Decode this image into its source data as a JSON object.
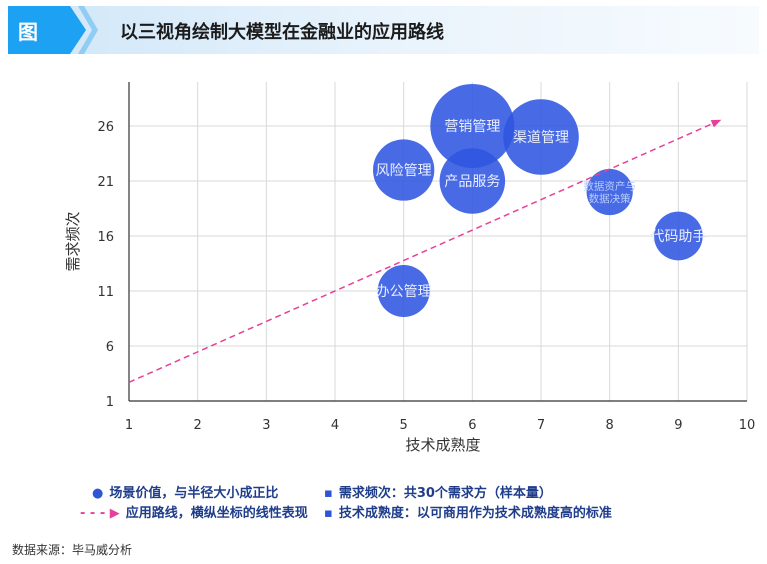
{
  "header": {
    "tag": "图",
    "title": "以三视角绘制大模型在金融业的应用路线"
  },
  "chart_data": {
    "type": "scatter",
    "subtype": "bubble",
    "xlabel": "技术成熟度",
    "ylabel": "需求频次",
    "xlim": [
      1,
      10
    ],
    "ylim": [
      1,
      30
    ],
    "xticks": [
      "1",
      "2",
      "3",
      "4",
      "5",
      "6",
      "7",
      "8",
      "9",
      "10"
    ],
    "yticks": [
      "1",
      "6",
      "11",
      "16",
      "21",
      "26"
    ],
    "grid": true,
    "series": [
      {
        "points": [
          {
            "label": "营销管理",
            "x": 6,
            "y": 26,
            "size": 1.0
          },
          {
            "label": "渠道管理",
            "x": 7,
            "y": 25,
            "size": 0.9
          },
          {
            "label": "风险管理",
            "x": 5,
            "y": 22,
            "size": 0.73
          },
          {
            "label": "产品服务",
            "x": 6,
            "y": 21,
            "size": 0.78
          },
          {
            "label": "数据资产与\n数据决策",
            "x": 8,
            "y": 20,
            "size": 0.55
          },
          {
            "label": "代码助手",
            "x": 9,
            "y": 16,
            "size": 0.58
          },
          {
            "label": "办公管理",
            "x": 5,
            "y": 11,
            "size": 0.62
          }
        ]
      }
    ],
    "trend_line": {
      "from": {
        "x": 1,
        "y": 2.7
      },
      "to": {
        "x": 9.6,
        "y": 26.5
      },
      "style": "dashed-arrow"
    },
    "colors": {
      "bubble": "#2f55e0",
      "bubble_text": "#e9efff",
      "small_bubble_text": "#b6ccff",
      "trend": "#e8409a",
      "grid": "#d9d9d9",
      "axis": "#333333"
    }
  },
  "legend": {
    "items": [
      {
        "marker": "●",
        "text": "场景价值，与半径大小成正比"
      },
      {
        "marker": "- - - ▶",
        "text": "应用路线，横纵坐标的线性表现"
      },
      {
        "marker": "▪",
        "text": "需求频次：共30个需求方（样本量）"
      },
      {
        "marker": "▪",
        "text": "技术成熟度：以可商用作为技术成熟度高的标准"
      }
    ]
  },
  "source": "数据来源：毕马威分析"
}
